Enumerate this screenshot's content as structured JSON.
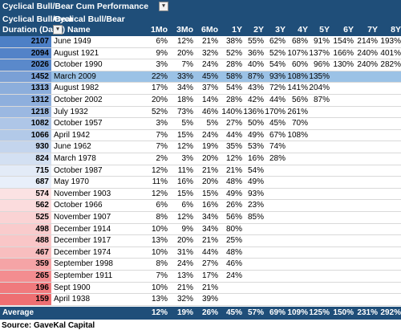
{
  "title": "Cyclical Bull/Bear Cum Performance",
  "header": {
    "duration_line1": "Cyclical Bull/Bear",
    "duration_line2": "Duration (Days)",
    "name_line1": "Cyclical Bull/Bear",
    "name_line2": "Name"
  },
  "columns": [
    "1Mo",
    "3Mo",
    "6Mo",
    "1Y",
    "2Y",
    "3Y",
    "4Y",
    "5Y",
    "6Y",
    "7Y",
    "8Y"
  ],
  "rows": [
    {
      "days": "2107",
      "name": "June 1949",
      "vals": [
        "6%",
        "12%",
        "21%",
        "38%",
        "55%",
        "62%",
        "68%",
        "91%",
        "154%",
        "214%",
        "193%"
      ],
      "shade": "#4d80c6"
    },
    {
      "days": "2094",
      "name": "August 1921",
      "vals": [
        "9%",
        "20%",
        "32%",
        "52%",
        "36%",
        "52%",
        "107%",
        "137%",
        "166%",
        "240%",
        "401%"
      ],
      "shade": "#5383c8"
    },
    {
      "days": "2026",
      "name": "October 1990",
      "vals": [
        "3%",
        "7%",
        "24%",
        "28%",
        "40%",
        "54%",
        "60%",
        "96%",
        "130%",
        "240%",
        "282%"
      ],
      "shade": "#5a89cb"
    },
    {
      "days": "1452",
      "name": "March 2009",
      "vals": [
        "22%",
        "33%",
        "45%",
        "58%",
        "87%",
        "93%",
        "108%",
        "135%",
        "",
        "",
        ""
      ],
      "shade": "#7aa0d6",
      "highlight": true
    },
    {
      "days": "1313",
      "name": "August 1982",
      "vals": [
        "17%",
        "34%",
        "37%",
        "54%",
        "43%",
        "72%",
        "141%",
        "204%",
        "",
        "",
        ""
      ],
      "shade": "#8caedc"
    },
    {
      "days": "1312",
      "name": "October 2002",
      "vals": [
        "20%",
        "18%",
        "14%",
        "28%",
        "42%",
        "44%",
        "56%",
        "87%",
        "",
        "",
        ""
      ],
      "shade": "#8eafdd"
    },
    {
      "days": "1218",
      "name": "July 1932",
      "vals": [
        "52%",
        "73%",
        "46%",
        "140%",
        "136%",
        "170%",
        "261%",
        "",
        "",
        "",
        ""
      ],
      "shade": "#9bb8e1"
    },
    {
      "days": "1082",
      "name": "October 1957",
      "vals": [
        "3%",
        "5%",
        "5%",
        "27%",
        "50%",
        "45%",
        "70%",
        "",
        "",
        "",
        ""
      ],
      "shade": "#aec6e7"
    },
    {
      "days": "1066",
      "name": "April 1942",
      "vals": [
        "7%",
        "15%",
        "24%",
        "44%",
        "49%",
        "67%",
        "108%",
        "",
        "",
        "",
        ""
      ],
      "shade": "#b2c9e8"
    },
    {
      "days": "930",
      "name": "June 1962",
      "vals": [
        "7%",
        "12%",
        "19%",
        "35%",
        "53%",
        "74%",
        "",
        "",
        "",
        "",
        ""
      ],
      "shade": "#c4d5ed"
    },
    {
      "days": "824",
      "name": "March 1978",
      "vals": [
        "2%",
        "3%",
        "20%",
        "12%",
        "16%",
        "28%",
        "",
        "",
        "",
        "",
        ""
      ],
      "shade": "#d3e0f2"
    },
    {
      "days": "715",
      "name": "October 1987",
      "vals": [
        "12%",
        "11%",
        "21%",
        "21%",
        "54%",
        "",
        "",
        "",
        "",
        "",
        ""
      ],
      "shade": "#e3ebf7"
    },
    {
      "days": "687",
      "name": "May 1970",
      "vals": [
        "11%",
        "16%",
        "20%",
        "48%",
        "49%",
        "",
        "",
        "",
        "",
        "",
        ""
      ],
      "shade": "#e8effa"
    },
    {
      "days": "574",
      "name": "November 1903",
      "vals": [
        "12%",
        "15%",
        "15%",
        "49%",
        "93%",
        "",
        "",
        "",
        "",
        "",
        ""
      ],
      "shade": "#fbe2e3"
    },
    {
      "days": "562",
      "name": "October 1966",
      "vals": [
        "6%",
        "6%",
        "16%",
        "26%",
        "23%",
        "",
        "",
        "",
        "",
        "",
        ""
      ],
      "shade": "#fbdcdd"
    },
    {
      "days": "525",
      "name": "November 1907",
      "vals": [
        "8%",
        "12%",
        "34%",
        "56%",
        "85%",
        "",
        "",
        "",
        "",
        "",
        ""
      ],
      "shade": "#fad3d4"
    },
    {
      "days": "498",
      "name": "December 1914",
      "vals": [
        "10%",
        "9%",
        "34%",
        "80%",
        "",
        "",
        "",
        "",
        "",
        "",
        ""
      ],
      "shade": "#f9cbcc"
    },
    {
      "days": "488",
      "name": "December 1917",
      "vals": [
        "13%",
        "20%",
        "21%",
        "25%",
        "",
        "",
        "",
        "",
        "",
        "",
        ""
      ],
      "shade": "#f9c6c7"
    },
    {
      "days": "467",
      "name": "December 1974",
      "vals": [
        "10%",
        "31%",
        "44%",
        "48%",
        "",
        "",
        "",
        "",
        "",
        "",
        ""
      ],
      "shade": "#f8bebf"
    },
    {
      "days": "359",
      "name": "September 1998",
      "vals": [
        "8%",
        "24%",
        "27%",
        "46%",
        "",
        "",
        "",
        "",
        "",
        "",
        ""
      ],
      "shade": "#f5a4a6"
    },
    {
      "days": "265",
      "name": "September 1911",
      "vals": [
        "7%",
        "13%",
        "17%",
        "24%",
        "",
        "",
        "",
        "",
        "",
        "",
        ""
      ],
      "shade": "#f38d90"
    },
    {
      "days": "196",
      "name": "Sept 1900",
      "vals": [
        "10%",
        "21%",
        "21%",
        "",
        "",
        "",
        "",
        "",
        "",
        "",
        ""
      ],
      "shade": "#f07a7d"
    },
    {
      "days": "159",
      "name": "April 1938",
      "vals": [
        "13%",
        "32%",
        "39%",
        "",
        "",
        "",
        "",
        "",
        "",
        "",
        ""
      ],
      "shade": "#ee6f72"
    }
  ],
  "average": {
    "label": "Average",
    "vals": [
      "12%",
      "19%",
      "26%",
      "45%",
      "57%",
      "69%",
      "109%",
      "125%",
      "150%",
      "231%",
      "292%"
    ]
  },
  "source": "Source: GaveKal Capital",
  "colors": {
    "header_bg": "#1f4e79",
    "highlight_row": "#9bc2e6",
    "filter_icon_bg": "#f2f2f2"
  }
}
